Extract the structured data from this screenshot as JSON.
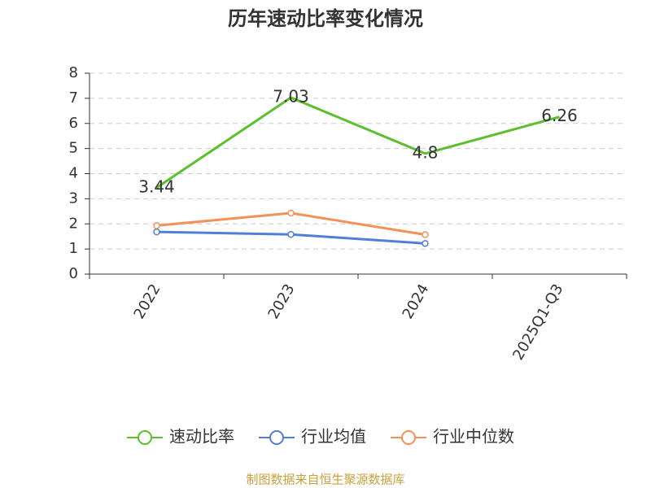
{
  "chart_data": {
    "type": "line",
    "title": "历年速动比率变化情况",
    "categories": [
      "2022",
      "2023",
      "2024",
      "2025Q1-Q3"
    ],
    "series": [
      {
        "name": "速动比率",
        "color": "#5cbf2c",
        "values": [
          3.44,
          7.03,
          4.8,
          6.26
        ],
        "show_labels": true,
        "markers": false
      },
      {
        "name": "行业均值",
        "color": "#4f7fd9",
        "values": [
          1.68,
          1.58,
          1.22,
          null
        ],
        "markers": true
      },
      {
        "name": "行业中位数",
        "color": "#f4915b",
        "values": [
          1.93,
          2.43,
          1.57,
          null
        ],
        "markers": true
      }
    ],
    "ylim": [
      0,
      8
    ],
    "yticks": [
      0,
      1,
      2,
      3,
      4,
      5,
      6,
      7,
      8
    ],
    "grid": true,
    "legend": "bottom",
    "source": "制图数据来自恒生聚源数据库"
  }
}
